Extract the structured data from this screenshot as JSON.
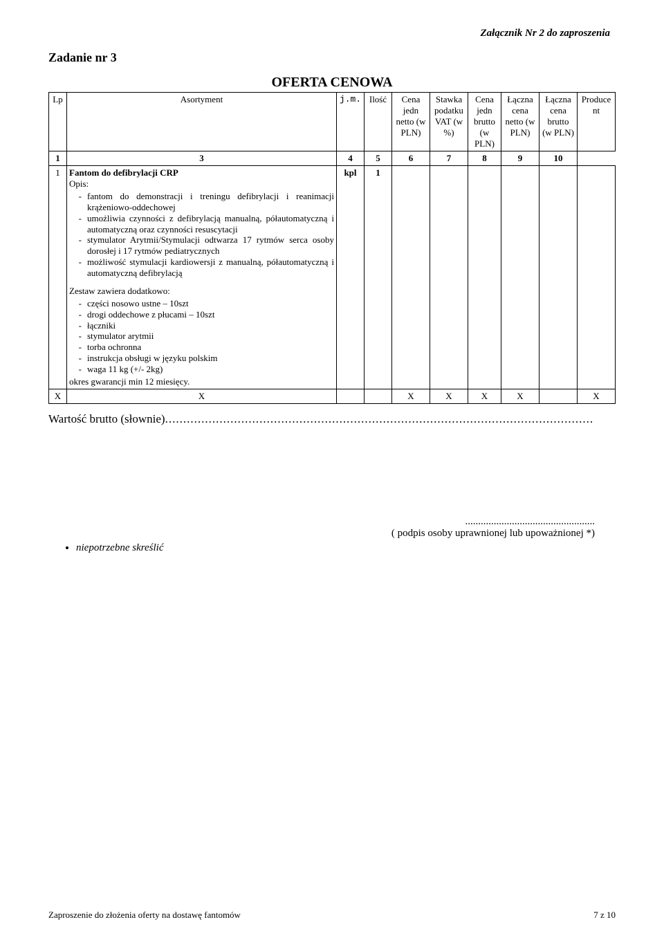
{
  "header_right": "Załącznik Nr 2 do zaproszenia",
  "task_title": "Zadanie nr 3",
  "offer_title": "OFERTA CENOWA",
  "columns": {
    "lp": "Lp",
    "asort": "Asortyment",
    "jm": "j.m.",
    "ilosc": "Ilość",
    "cjn": "Cena jedn netto (w PLN)",
    "vat": "Stawka podatku VAT (w %)",
    "cjb": "Cena jedn brutto (w PLN)",
    "lcn": "Łączna cena netto (w PLN)",
    "lcb": "Łączna cena brutto (w PLN)",
    "prod": "Produce nt"
  },
  "num_row": [
    "1",
    "3",
    "4",
    "5",
    "6",
    "7",
    "8",
    "9",
    "10"
  ],
  "item": {
    "num": "1",
    "title": "Fantom do defibrylacji CRP",
    "opis_label": "Opis:",
    "opis_items": [
      "fantom do demonstracji i treningu defibrylacji i reanimacji krążeniowo-oddechowej",
      "umożliwia czynności z defibrylacją manualną, półautomatyczną i automatyczną oraz czynności resuscytacji",
      "stymulator Arytmii/Stymulacji odtwarza 17 rytmów serca osoby dorosłej i 17 rytmów pediatrycznych",
      "możliwość stymulacji kardiowersji z manualną, półautomatyczną i automatyczną defibrylacją"
    ],
    "set_title": "Zestaw zawiera dodatkowo:",
    "set_items": [
      "części nosowo ustne – 10szt",
      "drogi oddechowe z płucami – 10szt",
      "łączniki",
      "stymulator arytmii",
      "torba ochronna",
      "instrukcja obsługi w języku polskim",
      "waga 11 kg (+/- 2kg)"
    ],
    "warranty": "okres gwarancji min 12 miesięcy.",
    "jm": "kpl",
    "ilosc": "1"
  },
  "summary_row": [
    "X",
    "X",
    "X",
    "X",
    "X",
    "X",
    "X"
  ],
  "wartosc_label": "Wartość brutto (słownie)",
  "signature_dots": "..................................................",
  "signature_text": "( podpis osoby uprawnionej lub upoważnionej *)",
  "bullet_text": "niepotrzebne skreślić",
  "footer_left": "Zaproszenie do złożenia oferty na dostawę fantomów",
  "footer_right": "7 z 10",
  "colors": {
    "text": "#000000",
    "background": "#ffffff",
    "border": "#000000"
  }
}
